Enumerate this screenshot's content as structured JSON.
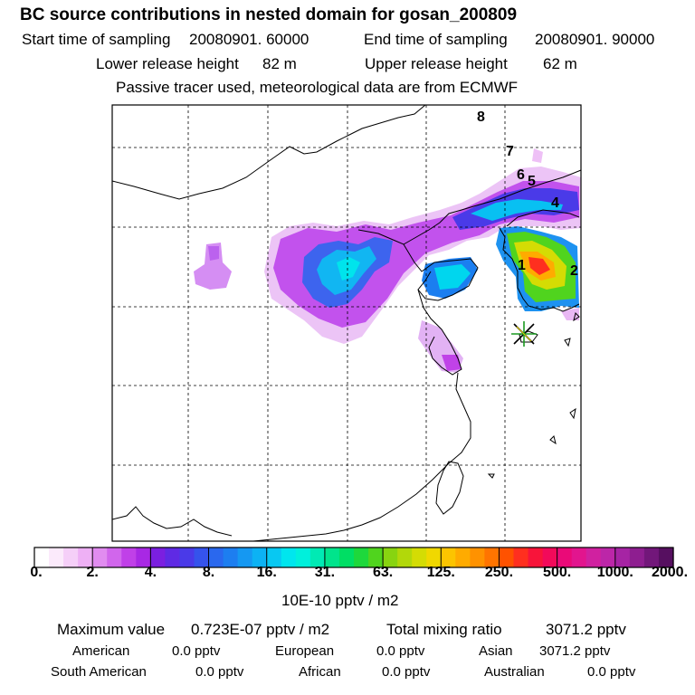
{
  "header": {
    "title": "BC  source contributions in nested domain for gosan_200809",
    "start_label": "Start time of sampling",
    "start_value": "20080901. 60000",
    "end_label": "End time of sampling",
    "end_value": "20080901. 90000",
    "lower_label": "Lower release height",
    "lower_value": "82 m",
    "upper_label": "Upper release height",
    "upper_value": "62 m",
    "note": "Passive tracer used, meteorological data are from ECMWF"
  },
  "map": {
    "region": "East Asia nested domain",
    "point_labels": [
      "1",
      "2",
      "4",
      "5",
      "6",
      "7",
      "8"
    ],
    "receptor": "gosan-marker-icon"
  },
  "colorbar": {
    "ticks": [
      "0.",
      "2.",
      "4.",
      "8.",
      "16.",
      "31.",
      "63.",
      "125.",
      "250.",
      "500.",
      "1000.",
      "2000."
    ],
    "colors": [
      "#ffffff",
      "#fbeafb",
      "#f5cff8",
      "#eeb0f5",
      "#e18cf0",
      "#d166ec",
      "#c040e8",
      "#a828e4",
      "#7b1fe0",
      "#5f2ae4",
      "#4a3ae8",
      "#3553ec",
      "#2a68ee",
      "#1d7ef0",
      "#1598f2",
      "#0cb2f4",
      "#08c8f2",
      "#00e6ee",
      "#00f0dc",
      "#00eab4",
      "#00e48c",
      "#00de64",
      "#1ed83c",
      "#50d41e",
      "#88d410",
      "#b2d80a",
      "#d4dc04",
      "#f0d800",
      "#fcc400",
      "#ffab00",
      "#ff9200",
      "#ff7400",
      "#ff5200",
      "#ff2f1f",
      "#f8143a",
      "#f20a5a",
      "#ea0a78",
      "#e2158e",
      "#d021a0",
      "#bc26a8",
      "#a624a4",
      "#8e1e90",
      "#72177a",
      "#560f60"
    ],
    "unit": "10E-10 pptv / m2"
  },
  "stats": {
    "max_label": "Maximum value",
    "max_value": "0.723E-07 pptv / m2",
    "total_label": "Total mixing ratio",
    "total_value": "3071.2 pptv",
    "sources": [
      {
        "name": "American",
        "value": "0.0 pptv"
      },
      {
        "name": "European",
        "value": "0.0 pptv"
      },
      {
        "name": "Asian",
        "value": "3071.2 pptv"
      },
      {
        "name": "South American",
        "value": "0.0 pptv"
      },
      {
        "name": "African",
        "value": "0.0 pptv"
      },
      {
        "name": "Australian",
        "value": "0.0 pptv"
      }
    ]
  }
}
